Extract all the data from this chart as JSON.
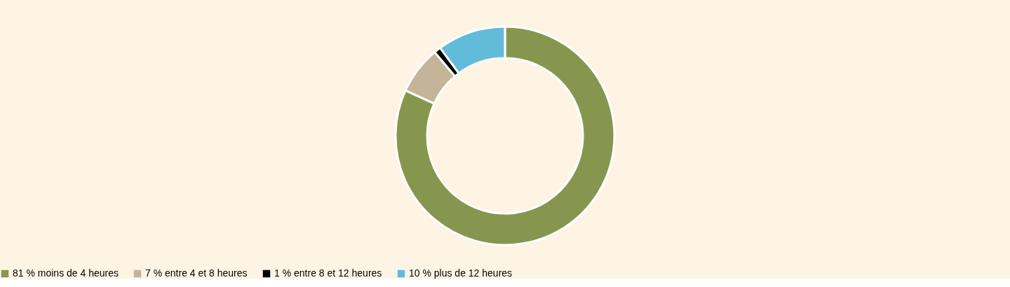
{
  "chart_data": {
    "type": "donut",
    "categories": [
      "moins de 4 heures",
      "entre 4 et 8 heures",
      "entre 8 et 12 heures",
      "plus de 12 heures"
    ],
    "values": [
      81,
      7,
      1,
      10
    ],
    "colors": [
      "#86964f",
      "#c3b49a",
      "#000000",
      "#62bcd9"
    ],
    "value_labels": [
      "81 %",
      "7 %",
      "1 %",
      "10 %"
    ],
    "legend": "bottom"
  }
}
